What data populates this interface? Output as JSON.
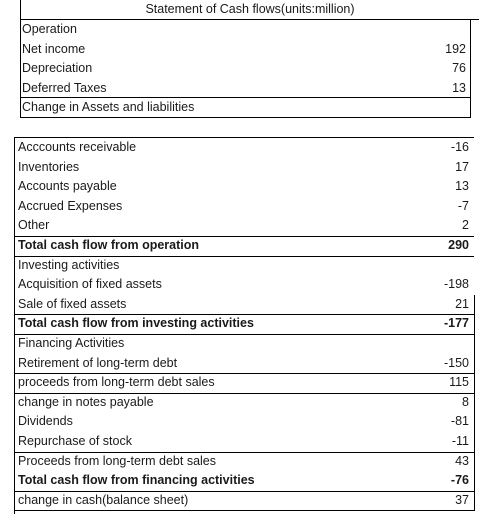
{
  "statement": {
    "title": "Statement of Cash flows(units:million)",
    "top_rows": [
      {
        "label": "Operation",
        "value": ""
      },
      {
        "label": "Net income",
        "value": "192"
      },
      {
        "label": "Depreciation",
        "value": "76"
      },
      {
        "label": "Deferred Taxes",
        "value": "13"
      },
      {
        "label": "Change in Assets and liabilities",
        "value": ""
      }
    ],
    "rows": [
      {
        "label": "Acccounts receivable",
        "value": "-16"
      },
      {
        "label": "Inventories",
        "value": "17"
      },
      {
        "label": "Accounts payable",
        "value": "13"
      },
      {
        "label": "Accrued Expenses",
        "value": "-7"
      },
      {
        "label": "Other",
        "value": "2"
      },
      {
        "label": "Total cash flow from operation",
        "value": "290",
        "bold": true
      },
      {
        "label": "Investing activities",
        "value": ""
      },
      {
        "label": "Acquisition of fixed assets",
        "value": "-198"
      },
      {
        "label": "Sale of fixed assets",
        "value": "21"
      },
      {
        "label": "Total cash flow from investing activities",
        "value": "-177",
        "bold": true
      },
      {
        "label": "Financing Activities",
        "value": ""
      },
      {
        "label": "Retirement of long-term debt",
        "value": "-150"
      },
      {
        "label": "proceeds from long-term debt sales",
        "value": "115"
      },
      {
        "label": "change in notes payable",
        "value": "8"
      },
      {
        "label": "Dividends",
        "value": "-81"
      },
      {
        "label": "Repurchase of stock",
        "value": "-11"
      },
      {
        "label": "Proceeds from long-term debt sales",
        "value": "43"
      },
      {
        "label": "Total cash flow from financing activities",
        "value": "-76",
        "bold": true
      },
      {
        "label": "change in cash(balance sheet)",
        "value": "37"
      }
    ]
  }
}
